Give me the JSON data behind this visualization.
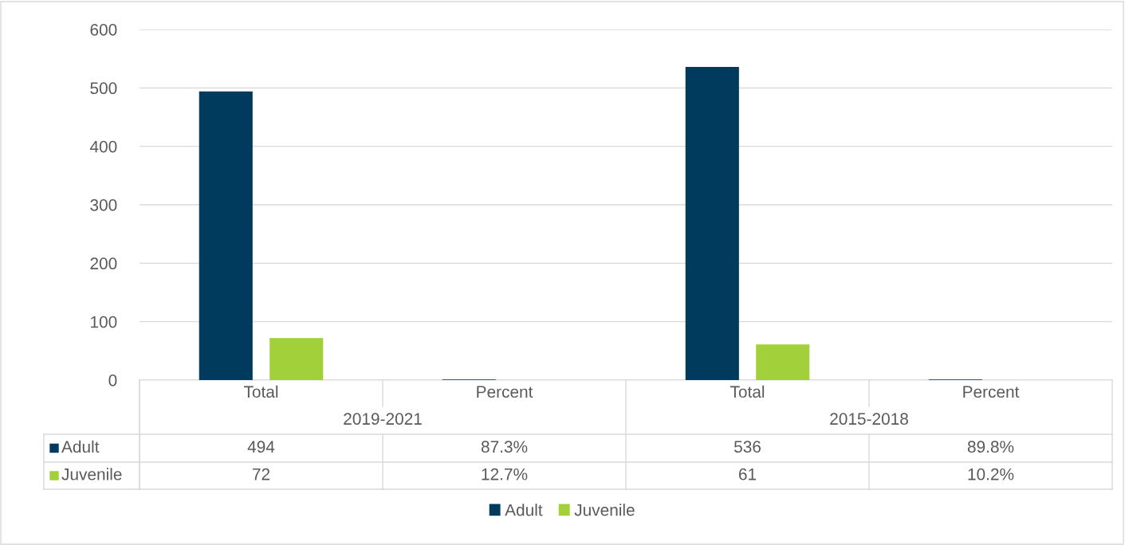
{
  "chart_data": {
    "type": "bar",
    "categories": [
      "Total",
      "Percent",
      "Total",
      "Percent"
    ],
    "annotations": [
      "2019-2021",
      "2015-2018"
    ],
    "series": [
      {
        "name": "Adult",
        "color": "#003a5d",
        "values": [
          494,
          0.873,
          536,
          0.898
        ],
        "value_labels": [
          "494",
          "87.3%",
          "536",
          "89.8%"
        ]
      },
      {
        "name": "Juvenile",
        "color": "#a2d03a",
        "values": [
          72,
          0.127,
          61,
          0.102
        ],
        "value_labels": [
          "72",
          "12.7%",
          "61",
          "10.2%"
        ]
      }
    ],
    "ylim": [
      0,
      600
    ],
    "yticks": [
      0,
      100,
      200,
      300,
      400,
      500,
      600
    ],
    "grid": "y",
    "legend": "bottom"
  }
}
